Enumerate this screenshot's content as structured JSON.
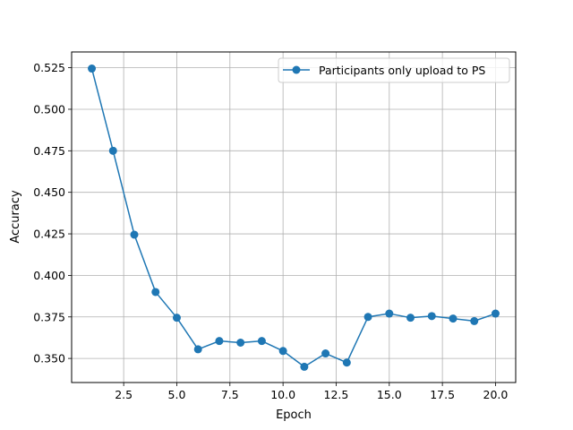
{
  "chart_data": {
    "type": "line",
    "title": "",
    "xlabel": "Epoch",
    "ylabel": "Accuracy",
    "xlim": [
      0.05,
      20.95
    ],
    "ylim": [
      0.3355,
      0.5345
    ],
    "xticks": [
      2.5,
      5.0,
      7.5,
      10.0,
      12.5,
      15.0,
      17.5,
      20.0
    ],
    "xtick_labels": [
      "2.5",
      "5.0",
      "7.5",
      "10.0",
      "12.5",
      "15.0",
      "17.5",
      "20.0"
    ],
    "yticks": [
      0.35,
      0.375,
      0.4,
      0.425,
      0.45,
      0.475,
      0.5,
      0.525
    ],
    "ytick_labels": [
      "0.350",
      "0.375",
      "0.400",
      "0.425",
      "0.450",
      "0.475",
      "0.500",
      "0.525"
    ],
    "grid": true,
    "legend_position": "top-right",
    "series": [
      {
        "name": "Participants only upload to PS",
        "color": "#1f77b4",
        "marker": "circle",
        "x": [
          1,
          2,
          3,
          4,
          5,
          6,
          7,
          8,
          9,
          10,
          11,
          12,
          13,
          14,
          15,
          16,
          17,
          18,
          19,
          20
        ],
        "y": [
          0.5245,
          0.475,
          0.4245,
          0.39,
          0.3745,
          0.3555,
          0.3605,
          0.3595,
          0.3605,
          0.3545,
          0.345,
          0.353,
          0.3475,
          0.375,
          0.377,
          0.3745,
          0.3755,
          0.374,
          0.3725,
          0.377
        ]
      }
    ]
  }
}
